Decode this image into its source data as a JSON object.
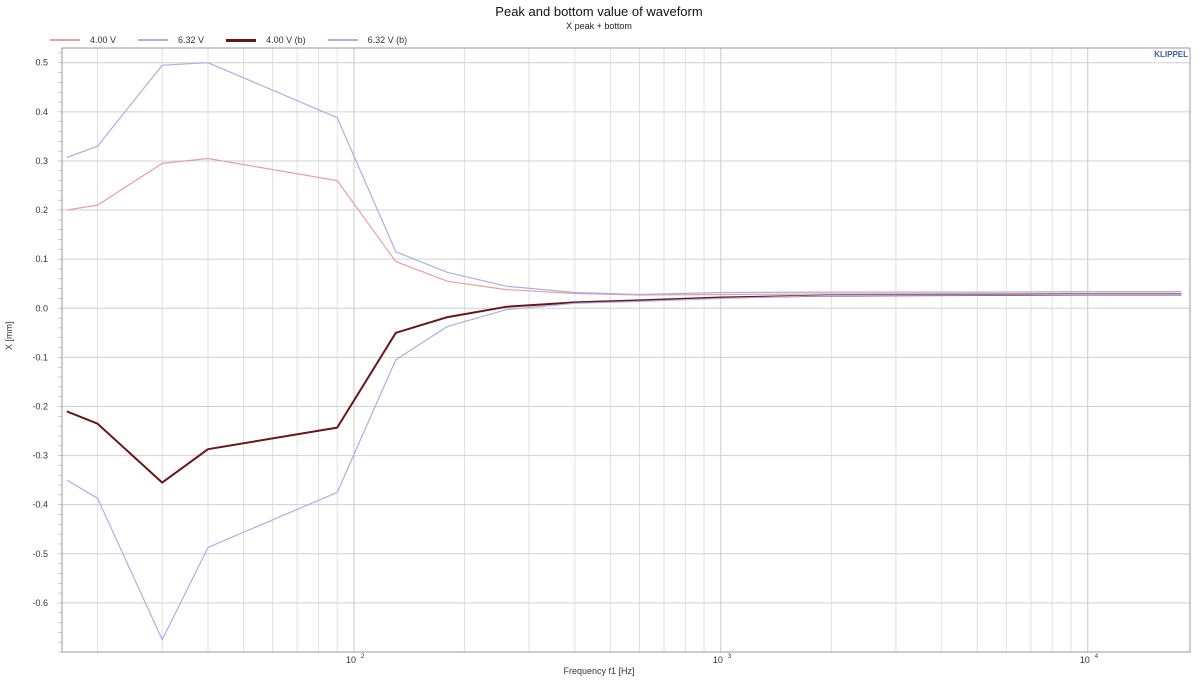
{
  "chart_data": {
    "type": "line",
    "title": "Peak and bottom value of waveform",
    "subtitle": "X  peak + bottom",
    "xlabel": "Frequency f1  [Hz]",
    "ylabel": "X  [mm]",
    "xscale": "log",
    "xlim": [
      16,
      19000
    ],
    "ylim": [
      -0.7,
      0.53
    ],
    "grid": true,
    "legend_position": "top-left",
    "brand": "KLIPPEL",
    "y_ticks": [
      "0.5",
      "0.4",
      "0.3",
      "0.2",
      "0.1",
      "0.0",
      "-0.1",
      "-0.2",
      "-0.3",
      "-0.4",
      "-0.5",
      "-0.6"
    ],
    "y_tick_values": [
      0.5,
      0.4,
      0.3,
      0.2,
      0.1,
      0.0,
      -0.1,
      -0.2,
      -0.3,
      -0.4,
      -0.5,
      -0.6
    ],
    "x_ticks": [
      {
        "value": 100,
        "base": "10",
        "exp": "2"
      },
      {
        "value": 1000,
        "base": "10",
        "exp": "3"
      },
      {
        "value": 10000,
        "base": "10",
        "exp": "4"
      }
    ],
    "series": [
      {
        "name": "4.00 V",
        "color": "#e8a0a0",
        "width": 1.2,
        "x": [
          16.5,
          20,
          30,
          40,
          90,
          130,
          180,
          260,
          400,
          600,
          1000,
          2000,
          5000,
          10000,
          18000
        ],
        "y": [
          0.2,
          0.21,
          0.295,
          0.305,
          0.26,
          0.095,
          0.055,
          0.038,
          0.03,
          0.027,
          0.028,
          0.029,
          0.03,
          0.03,
          0.03
        ]
      },
      {
        "name": "6.32 V",
        "color": "#a9b0e6",
        "width": 1.2,
        "x": [
          16.5,
          20,
          30,
          40,
          90,
          130,
          180,
          260,
          400,
          600,
          1000,
          2000,
          5000,
          10000,
          18000
        ],
        "y": [
          0.307,
          0.33,
          0.495,
          0.5,
          0.388,
          0.115,
          0.073,
          0.045,
          0.032,
          0.028,
          0.032,
          0.033,
          0.033,
          0.034,
          0.034
        ]
      },
      {
        "name": "4.00 V (b)",
        "color": "#6b1515",
        "width": 2.0,
        "x": [
          16.5,
          20,
          30,
          40,
          90,
          130,
          180,
          260,
          400,
          600,
          1000,
          2000,
          5000,
          10000,
          18000
        ],
        "y": [
          -0.21,
          -0.235,
          -0.355,
          -0.287,
          -0.243,
          -0.05,
          -0.018,
          0.003,
          0.012,
          0.016,
          0.022,
          0.026,
          0.027,
          0.028,
          0.028
        ]
      },
      {
        "name": "6.32 V (b)",
        "color": "#a9b0e6",
        "width": 1.2,
        "x": [
          16.5,
          20,
          30,
          40,
          90,
          130,
          180,
          260,
          400,
          600,
          1000,
          2000,
          5000,
          10000,
          18000
        ],
        "y": [
          -0.35,
          -0.387,
          -0.675,
          -0.487,
          -0.375,
          -0.105,
          -0.037,
          -0.003,
          0.01,
          0.014,
          0.02,
          0.026,
          0.027,
          0.028,
          0.028
        ]
      }
    ]
  }
}
